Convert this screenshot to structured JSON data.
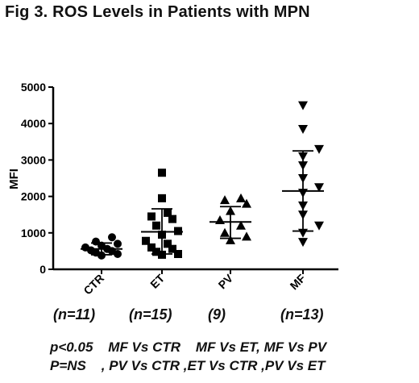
{
  "figure_title": "Fig 3. ROS Levels in Patients with MPN",
  "chart_data": {
    "type": "scatter",
    "title": "Fig 3. ROS Levels in Patients with MPN",
    "xlabel": "",
    "ylabel": "MFI",
    "ylim": [
      0,
      5000
    ],
    "yticks": [
      "0",
      "1000",
      "2000",
      "3000",
      "4000",
      "5000"
    ],
    "categories": [
      "CTR",
      "ET",
      "PV",
      "MF"
    ],
    "grid": false,
    "groups": [
      {
        "name": "CTR",
        "marker": "circle",
        "mean": 560,
        "sd_low": 400,
        "sd_high": 720,
        "values": [
          380,
          420,
          460,
          500,
          520,
          560,
          600,
          650,
          700,
          760,
          880
        ]
      },
      {
        "name": "ET",
        "marker": "square",
        "mean": 1030,
        "sd_low": 420,
        "sd_high": 1660,
        "values": [
          400,
          420,
          480,
          560,
          600,
          700,
          780,
          950,
          1050,
          1200,
          1380,
          1450,
          1550,
          1950,
          2650
        ]
      },
      {
        "name": "PV",
        "marker": "triangle-up",
        "mean": 1300,
        "sd_low": 850,
        "sd_high": 1720,
        "values": [
          800,
          900,
          1000,
          1200,
          1350,
          1600,
          1800,
          1900,
          1950
        ]
      },
      {
        "name": "MF",
        "marker": "triangle-down",
        "mean": 2150,
        "sd_low": 1050,
        "sd_high": 3250,
        "values": [
          750,
          1000,
          1200,
          1500,
          1750,
          2100,
          2250,
          2500,
          2850,
          3100,
          3300,
          3850,
          4500
        ]
      }
    ]
  },
  "sample_sizes": [
    "(n=11)",
    "(n=15)",
    "(9)",
    "(n=13)"
  ],
  "stats": {
    "line1": "p<0.05    MF Vs CTR    MF Vs ET, MF Vs PV",
    "line2": "P=NS    , PV Vs CTR ,ET Vs CTR ,PV Vs ET"
  }
}
